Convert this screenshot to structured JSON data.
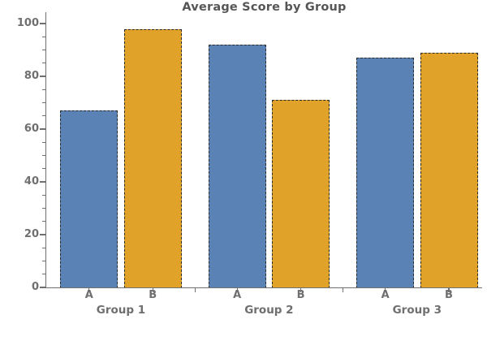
{
  "chart_data": {
    "type": "bar",
    "title": "Average Score by Group",
    "categories": [
      "Group 1",
      "Group 2",
      "Group 3"
    ],
    "bar_labels": [
      "A",
      "B"
    ],
    "series": [
      {
        "name": "A",
        "color": "#5b82b4",
        "values": [
          67,
          92,
          87
        ]
      },
      {
        "name": "B",
        "color": "#e0a228",
        "values": [
          98,
          71,
          89
        ]
      }
    ],
    "xlabel": "",
    "ylabel": "",
    "ylim": [
      0,
      104
    ],
    "yticks": [
      0,
      20,
      40,
      60,
      80,
      100
    ],
    "ytick_minor_step": 5,
    "grid": false,
    "legend": "none",
    "bar_edge_style": "dashed",
    "bar_edge_color": "#2b2b2b",
    "axis_color": "#707070",
    "label_color": "#6f6f6f",
    "title_color": "#565656"
  }
}
